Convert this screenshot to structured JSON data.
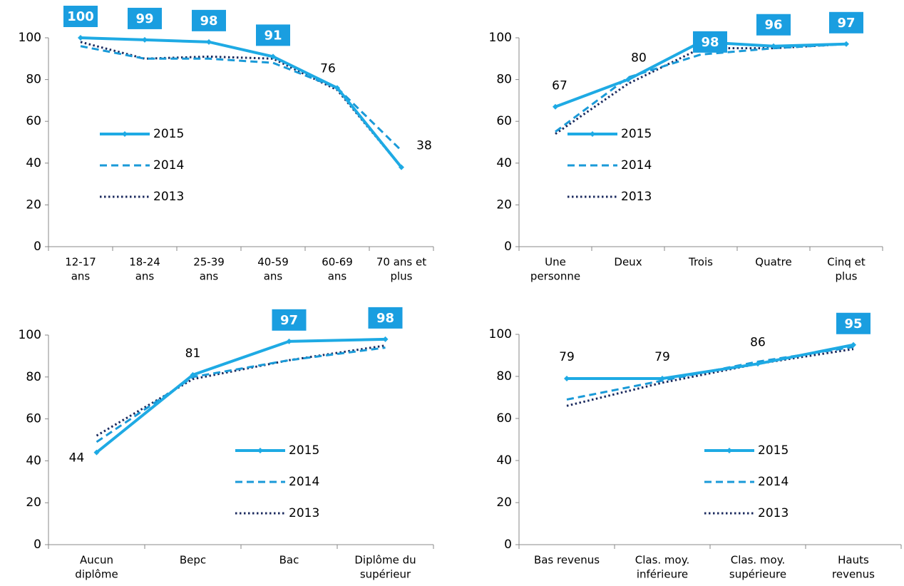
{
  "chart_data": [
    {
      "type": "line",
      "categories": [
        [
          "12-17",
          "ans"
        ],
        [
          "18-24",
          "ans"
        ],
        [
          "25-39",
          "ans"
        ],
        [
          "40-59",
          "ans"
        ],
        [
          "60-69",
          "ans"
        ],
        [
          "70 ans et",
          "plus"
        ]
      ],
      "series": [
        {
          "name": "2015",
          "color": "#1eaae4",
          "style": "solid",
          "values": [
            100,
            99,
            98,
            91,
            76,
            38
          ]
        },
        {
          "name": "2014",
          "color": "#1a9ad8",
          "style": "dashed",
          "values": [
            96,
            90,
            90,
            88,
            76,
            46
          ]
        },
        {
          "name": "2013",
          "color": "#1b2a5e",
          "style": "dotted",
          "values": [
            98,
            90,
            91,
            90,
            75,
            38
          ]
        }
      ],
      "highlight": [
        true,
        true,
        true,
        true,
        false,
        false
      ],
      "ylim": [
        0,
        100
      ],
      "yticks": [
        0,
        20,
        40,
        60,
        80,
        100
      ]
    },
    {
      "type": "line",
      "categories": [
        [
          "Une",
          "personne"
        ],
        [
          "Deux"
        ],
        [
          "Trois"
        ],
        [
          "Quatre"
        ],
        [
          "Cinq et",
          "plus"
        ]
      ],
      "series": [
        {
          "name": "2015",
          "color": "#1eaae4",
          "style": "solid",
          "values": [
            67,
            80,
            98,
            96,
            97
          ]
        },
        {
          "name": "2014",
          "color": "#1a9ad8",
          "style": "dashed",
          "values": [
            55,
            81,
            92,
            95,
            97
          ]
        },
        {
          "name": "2013",
          "color": "#1b2a5e",
          "style": "dotted",
          "values": [
            54,
            78,
            95,
            95,
            97
          ]
        }
      ],
      "highlight": [
        false,
        false,
        true,
        true,
        true
      ],
      "ylim": [
        0,
        100
      ],
      "yticks": [
        0,
        20,
        40,
        60,
        80,
        100
      ]
    },
    {
      "type": "line",
      "categories": [
        [
          "Aucun",
          "diplôme"
        ],
        [
          "Bepc"
        ],
        [
          "Bac"
        ],
        [
          "Diplôme du",
          "supérieur"
        ]
      ],
      "series": [
        {
          "name": "2015",
          "color": "#1eaae4",
          "style": "solid",
          "values": [
            44,
            81,
            97,
            98
          ]
        },
        {
          "name": "2014",
          "color": "#1a9ad8",
          "style": "dashed",
          "values": [
            49,
            80,
            88,
            94
          ]
        },
        {
          "name": "2013",
          "color": "#1b2a5e",
          "style": "dotted",
          "values": [
            52,
            79,
            88,
            95
          ]
        }
      ],
      "highlight": [
        false,
        false,
        true,
        true
      ],
      "ylim": [
        0,
        100
      ],
      "yticks": [
        0,
        20,
        40,
        60,
        80,
        100
      ]
    },
    {
      "type": "line",
      "categories": [
        [
          "Bas revenus"
        ],
        [
          "Clas. moy.",
          "inférieure"
        ],
        [
          "Clas. moy.",
          "supérieure"
        ],
        [
          "Hauts",
          "revenus"
        ]
      ],
      "series": [
        {
          "name": "2015",
          "color": "#1eaae4",
          "style": "solid",
          "values": [
            79,
            79,
            86,
            95
          ]
        },
        {
          "name": "2014",
          "color": "#1a9ad8",
          "style": "dashed",
          "values": [
            69,
            78,
            87,
            94
          ]
        },
        {
          "name": "2013",
          "color": "#1b2a5e",
          "style": "dotted",
          "values": [
            66,
            77,
            86,
            93
          ]
        }
      ],
      "highlight": [
        false,
        false,
        false,
        true
      ],
      "ylim": [
        0,
        100
      ],
      "yticks": [
        0,
        20,
        40,
        60,
        80,
        100
      ]
    }
  ]
}
